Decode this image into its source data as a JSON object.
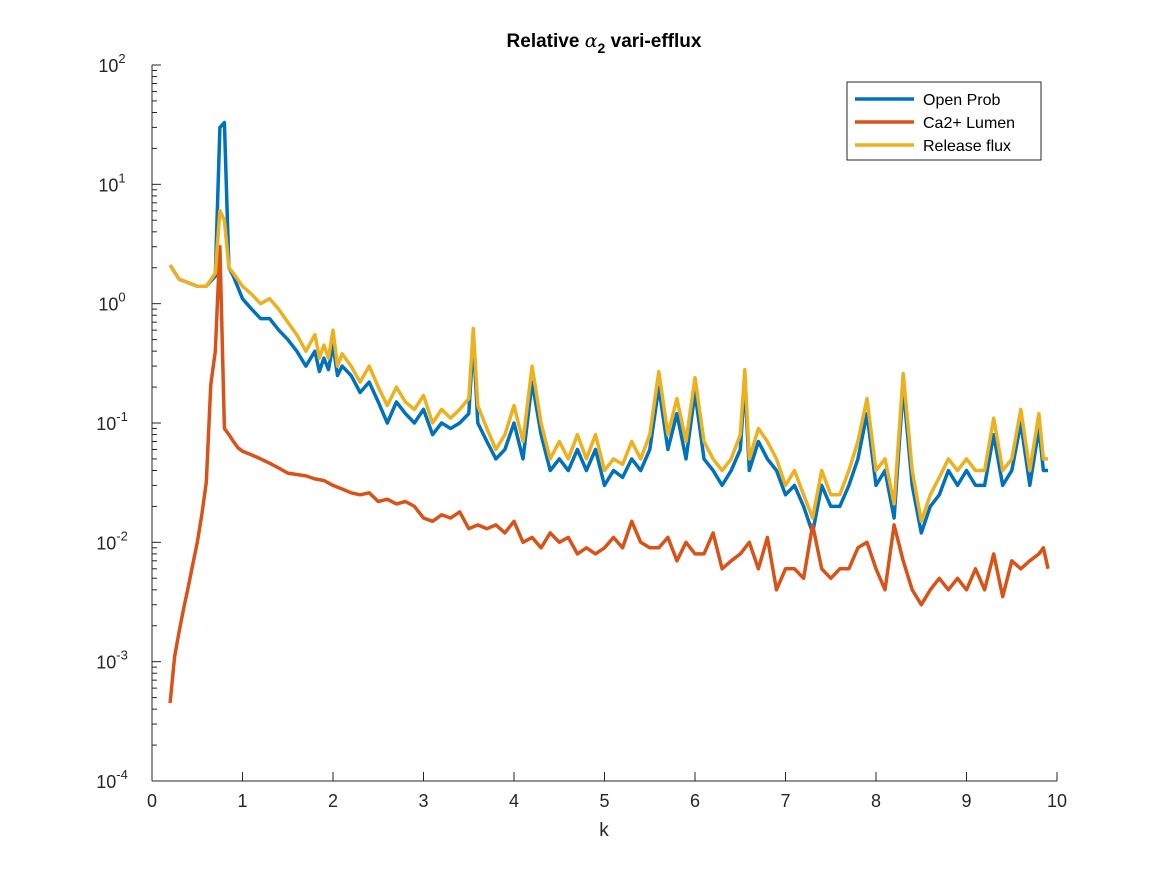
{
  "chart_data": {
    "type": "line",
    "title": {
      "prefix": "Relative ",
      "symbol": "α",
      "subscript": "2",
      "suffix": " vari-efflux"
    },
    "xlabel": "k",
    "ylabel": "",
    "yscale": "log",
    "xlim": [
      0,
      10
    ],
    "ylim": [
      0.0001,
      100
    ],
    "x_ticks": [
      0,
      1,
      2,
      3,
      4,
      5,
      6,
      7,
      8,
      9,
      10
    ],
    "x_tick_labels": [
      "0",
      "1",
      "2",
      "3",
      "4",
      "5",
      "6",
      "7",
      "8",
      "9",
      "10"
    ],
    "y_ticks": [
      0.0001,
      0.001,
      0.01,
      0.1,
      1,
      10,
      100
    ],
    "y_tick_labels": [
      {
        "base": "10",
        "exp": "-4"
      },
      {
        "base": "10",
        "exp": "-3"
      },
      {
        "base": "10",
        "exp": "-2"
      },
      {
        "base": "10",
        "exp": "-1"
      },
      {
        "base": "10",
        "exp": "0"
      },
      {
        "base": "10",
        "exp": "1"
      },
      {
        "base": "10",
        "exp": "2"
      }
    ],
    "grid": false,
    "legend_position": "top-right",
    "series": [
      {
        "name": "Open Prob",
        "color": "#0072bd",
        "x": [
          0.2,
          0.3,
          0.4,
          0.5,
          0.6,
          0.7,
          0.75,
          0.8,
          0.85,
          0.9,
          1.0,
          1.1,
          1.2,
          1.3,
          1.4,
          1.5,
          1.6,
          1.7,
          1.8,
          1.85,
          1.9,
          1.95,
          2.0,
          2.05,
          2.1,
          2.2,
          2.3,
          2.4,
          2.5,
          2.6,
          2.7,
          2.8,
          2.9,
          3.0,
          3.1,
          3.2,
          3.3,
          3.4,
          3.5,
          3.55,
          3.6,
          3.7,
          3.8,
          3.9,
          4.0,
          4.1,
          4.2,
          4.3,
          4.4,
          4.5,
          4.6,
          4.7,
          4.8,
          4.9,
          5.0,
          5.1,
          5.2,
          5.3,
          5.4,
          5.5,
          5.6,
          5.7,
          5.8,
          5.9,
          6.0,
          6.1,
          6.2,
          6.3,
          6.4,
          6.5,
          6.55,
          6.6,
          6.7,
          6.8,
          6.9,
          7.0,
          7.1,
          7.2,
          7.3,
          7.4,
          7.5,
          7.6,
          7.7,
          7.8,
          7.9,
          8.0,
          8.1,
          8.2,
          8.3,
          8.4,
          8.5,
          8.6,
          8.7,
          8.8,
          8.9,
          9.0,
          9.1,
          9.2,
          9.3,
          9.4,
          9.5,
          9.6,
          9.7,
          9.8,
          9.85,
          9.9
        ],
        "y": [
          2.1,
          1.6,
          1.5,
          1.4,
          1.4,
          1.7,
          30,
          33,
          2.0,
          1.7,
          1.1,
          0.9,
          0.75,
          0.75,
          0.6,
          0.5,
          0.4,
          0.3,
          0.4,
          0.27,
          0.35,
          0.28,
          0.45,
          0.25,
          0.3,
          0.25,
          0.18,
          0.22,
          0.15,
          0.1,
          0.15,
          0.12,
          0.1,
          0.13,
          0.08,
          0.1,
          0.09,
          0.1,
          0.12,
          0.5,
          0.1,
          0.07,
          0.05,
          0.06,
          0.1,
          0.05,
          0.22,
          0.08,
          0.04,
          0.05,
          0.04,
          0.06,
          0.04,
          0.06,
          0.03,
          0.04,
          0.035,
          0.05,
          0.04,
          0.06,
          0.2,
          0.06,
          0.12,
          0.05,
          0.18,
          0.05,
          0.04,
          0.03,
          0.04,
          0.06,
          0.22,
          0.04,
          0.07,
          0.05,
          0.04,
          0.025,
          0.03,
          0.02,
          0.012,
          0.03,
          0.02,
          0.02,
          0.03,
          0.05,
          0.12,
          0.03,
          0.04,
          0.016,
          0.2,
          0.03,
          0.012,
          0.02,
          0.025,
          0.04,
          0.03,
          0.04,
          0.03,
          0.03,
          0.08,
          0.03,
          0.04,
          0.1,
          0.03,
          0.09,
          0.04,
          0.04
        ]
      },
      {
        "name": "Ca2+ Lumen",
        "color": "#d95319",
        "x": [
          0.2,
          0.25,
          0.3,
          0.35,
          0.4,
          0.45,
          0.5,
          0.55,
          0.6,
          0.65,
          0.7,
          0.75,
          0.8,
          0.85,
          0.9,
          0.95,
          1.0,
          1.1,
          1.2,
          1.3,
          1.4,
          1.5,
          1.6,
          1.7,
          1.8,
          1.9,
          2.0,
          2.1,
          2.2,
          2.3,
          2.4,
          2.5,
          2.6,
          2.7,
          2.8,
          2.9,
          3.0,
          3.1,
          3.2,
          3.3,
          3.4,
          3.5,
          3.6,
          3.7,
          3.8,
          3.9,
          4.0,
          4.1,
          4.2,
          4.3,
          4.4,
          4.5,
          4.6,
          4.7,
          4.8,
          4.9,
          5.0,
          5.1,
          5.2,
          5.3,
          5.4,
          5.5,
          5.6,
          5.7,
          5.8,
          5.9,
          6.0,
          6.1,
          6.2,
          6.3,
          6.4,
          6.5,
          6.6,
          6.7,
          6.8,
          6.9,
          7.0,
          7.1,
          7.2,
          7.3,
          7.4,
          7.5,
          7.6,
          7.7,
          7.8,
          7.9,
          8.0,
          8.1,
          8.2,
          8.3,
          8.4,
          8.5,
          8.6,
          8.7,
          8.8,
          8.9,
          9.0,
          9.1,
          9.2,
          9.3,
          9.4,
          9.5,
          9.6,
          9.7,
          9.8,
          9.85,
          9.9
        ],
        "y": [
          0.00045,
          0.0011,
          0.0018,
          0.0028,
          0.0042,
          0.0065,
          0.01,
          0.017,
          0.032,
          0.21,
          0.4,
          3.0,
          0.09,
          0.08,
          0.07,
          0.062,
          0.058,
          0.054,
          0.05,
          0.046,
          0.042,
          0.038,
          0.037,
          0.036,
          0.034,
          0.033,
          0.03,
          0.028,
          0.026,
          0.025,
          0.026,
          0.022,
          0.023,
          0.021,
          0.022,
          0.02,
          0.016,
          0.015,
          0.017,
          0.016,
          0.018,
          0.013,
          0.014,
          0.013,
          0.014,
          0.012,
          0.015,
          0.01,
          0.011,
          0.009,
          0.012,
          0.01,
          0.011,
          0.008,
          0.009,
          0.008,
          0.009,
          0.011,
          0.009,
          0.015,
          0.01,
          0.009,
          0.009,
          0.011,
          0.007,
          0.01,
          0.008,
          0.008,
          0.012,
          0.006,
          0.007,
          0.008,
          0.01,
          0.006,
          0.011,
          0.004,
          0.006,
          0.006,
          0.005,
          0.014,
          0.006,
          0.005,
          0.006,
          0.006,
          0.009,
          0.01,
          0.006,
          0.004,
          0.014,
          0.007,
          0.004,
          0.003,
          0.004,
          0.005,
          0.004,
          0.005,
          0.004,
          0.006,
          0.004,
          0.008,
          0.0035,
          0.007,
          0.006,
          0.007,
          0.008,
          0.009,
          0.006
        ]
      },
      {
        "name": "Release flux",
        "color": "#edb120",
        "x": [
          0.2,
          0.3,
          0.4,
          0.5,
          0.6,
          0.7,
          0.75,
          0.8,
          0.85,
          0.9,
          1.0,
          1.1,
          1.2,
          1.3,
          1.4,
          1.5,
          1.6,
          1.7,
          1.8,
          1.85,
          1.9,
          1.95,
          2.0,
          2.05,
          2.1,
          2.2,
          2.3,
          2.4,
          2.5,
          2.6,
          2.7,
          2.8,
          2.9,
          3.0,
          3.1,
          3.2,
          3.3,
          3.4,
          3.5,
          3.55,
          3.6,
          3.7,
          3.8,
          3.9,
          4.0,
          4.1,
          4.2,
          4.3,
          4.4,
          4.5,
          4.6,
          4.7,
          4.8,
          4.9,
          5.0,
          5.1,
          5.2,
          5.3,
          5.4,
          5.5,
          5.6,
          5.7,
          5.8,
          5.9,
          6.0,
          6.1,
          6.2,
          6.3,
          6.4,
          6.5,
          6.55,
          6.6,
          6.7,
          6.8,
          6.9,
          7.0,
          7.1,
          7.2,
          7.3,
          7.4,
          7.5,
          7.6,
          7.7,
          7.8,
          7.9,
          8.0,
          8.1,
          8.2,
          8.3,
          8.4,
          8.5,
          8.6,
          8.7,
          8.8,
          8.9,
          9.0,
          9.1,
          9.2,
          9.3,
          9.4,
          9.5,
          9.6,
          9.7,
          9.8,
          9.85,
          9.9
        ],
        "y": [
          2.1,
          1.6,
          1.5,
          1.4,
          1.4,
          1.8,
          6.0,
          5.0,
          2.0,
          1.8,
          1.4,
          1.2,
          1.0,
          1.1,
          0.9,
          0.7,
          0.55,
          0.4,
          0.55,
          0.35,
          0.45,
          0.35,
          0.6,
          0.3,
          0.38,
          0.3,
          0.22,
          0.3,
          0.2,
          0.14,
          0.2,
          0.15,
          0.13,
          0.17,
          0.1,
          0.13,
          0.11,
          0.13,
          0.16,
          0.62,
          0.14,
          0.09,
          0.06,
          0.08,
          0.14,
          0.07,
          0.3,
          0.1,
          0.05,
          0.07,
          0.05,
          0.08,
          0.05,
          0.08,
          0.04,
          0.05,
          0.045,
          0.07,
          0.05,
          0.08,
          0.27,
          0.08,
          0.16,
          0.07,
          0.24,
          0.07,
          0.05,
          0.04,
          0.05,
          0.08,
          0.28,
          0.05,
          0.09,
          0.07,
          0.05,
          0.03,
          0.04,
          0.025,
          0.016,
          0.04,
          0.025,
          0.025,
          0.04,
          0.07,
          0.16,
          0.04,
          0.05,
          0.021,
          0.26,
          0.04,
          0.015,
          0.025,
          0.035,
          0.05,
          0.04,
          0.05,
          0.04,
          0.04,
          0.11,
          0.04,
          0.05,
          0.13,
          0.04,
          0.12,
          0.05,
          0.05
        ]
      }
    ]
  }
}
